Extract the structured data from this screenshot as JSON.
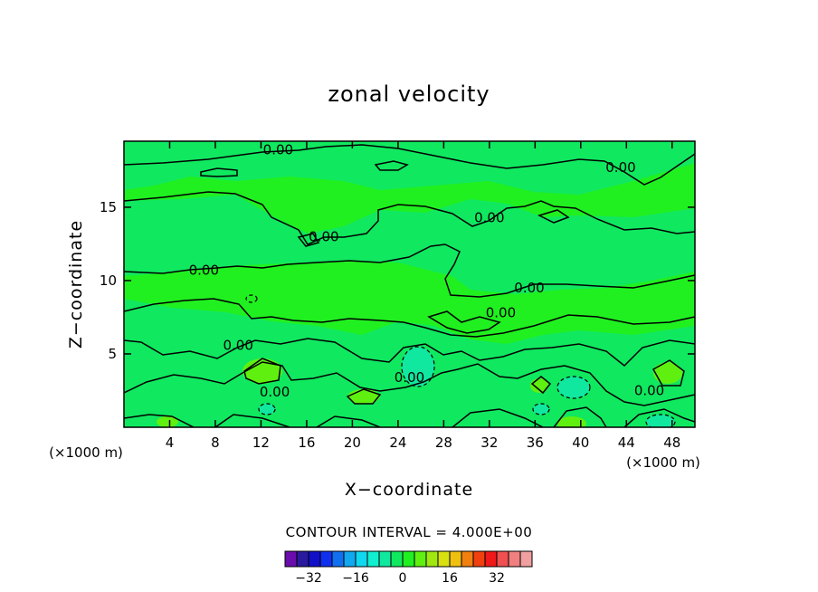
{
  "chart_data": {
    "type": "contour",
    "title": "zonal velocity",
    "xlabel": "X−coordinate",
    "ylabel": "Z−coordinate",
    "x_unit_label": "(×1000 m)",
    "x_unit_label_right": "(×1000 m)",
    "xlim": [
      0,
      50
    ],
    "ylim": [
      0,
      19.5
    ],
    "x_ticks": [
      4,
      8,
      12,
      16,
      20,
      24,
      28,
      32,
      36,
      40,
      44,
      48
    ],
    "y_ticks": [
      5,
      10,
      15
    ],
    "contour_interval_text": "CONTOUR INTERVAL = 4.000E+00",
    "contour_interval": 4,
    "contour_labels": [
      {
        "text": "0.00",
        "x": 13.5,
        "z": 18.9
      },
      {
        "text": "0.00",
        "x": 43.5,
        "z": 17.7
      },
      {
        "text": "0.00",
        "x": 32.0,
        "z": 14.3
      },
      {
        "text": "0.00",
        "x": 17.5,
        "z": 13.0
      },
      {
        "text": "0.00",
        "x": 7.0,
        "z": 10.7
      },
      {
        "text": "0.00",
        "x": 35.5,
        "z": 9.5
      },
      {
        "text": "0.00",
        "x": 33.0,
        "z": 7.8
      },
      {
        "text": "0.00",
        "x": 10.0,
        "z": 5.6
      },
      {
        "text": "0.00",
        "x": 25.0,
        "z": 3.4
      },
      {
        "text": "0.00",
        "x": 13.2,
        "z": 2.4
      },
      {
        "text": "0.00",
        "x": 46.0,
        "z": 2.5
      }
    ],
    "colorbar": {
      "levels": [
        -36,
        -32,
        -28,
        -24,
        -20,
        -16,
        -12,
        -8,
        -4,
        0,
        4,
        8,
        12,
        16,
        20,
        24,
        28,
        32,
        36
      ],
      "colors": [
        "#6a0dad",
        "#2a1a9e",
        "#1010c8",
        "#1030f0",
        "#1070f0",
        "#10a8f0",
        "#10d8f0",
        "#10f0d0",
        "#10e8a0",
        "#10e860",
        "#20f020",
        "#60f010",
        "#a0e810",
        "#d8e010",
        "#f0c010",
        "#f08010",
        "#f04010",
        "#f01818",
        "#f05050",
        "#f08080",
        "#f0a0a0"
      ],
      "tick_labels": [
        "−32",
        "−16",
        "0",
        "16",
        "32"
      ],
      "tick_values": [
        -32,
        -16,
        0,
        16,
        32
      ]
    }
  }
}
